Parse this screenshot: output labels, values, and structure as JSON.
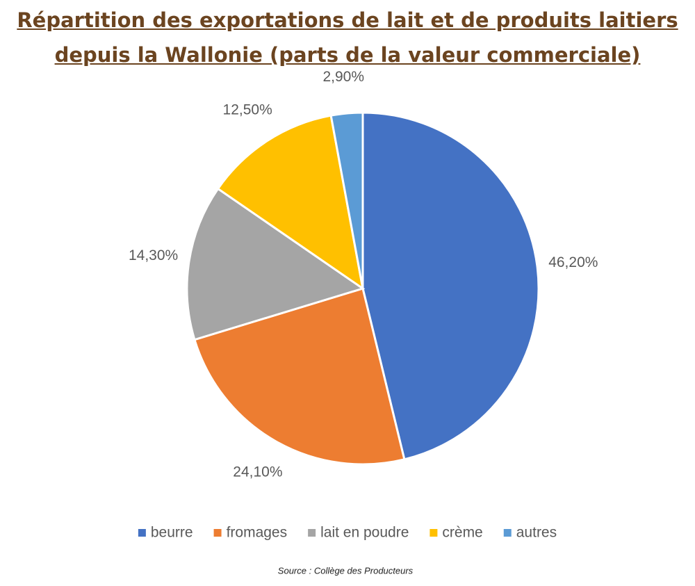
{
  "chart_data": {
    "type": "pie",
    "title": "Répartition des exportations de lait et de produits laitiers depuis la Wallonie (parts de la valeur commerciale)",
    "categories": [
      "beurre",
      "fromages",
      "lait en poudre",
      "crème",
      "autres"
    ],
    "values": [
      46.2,
      24.1,
      14.3,
      12.5,
      2.9
    ],
    "value_labels": [
      "46,20%",
      "24,10%",
      "14,30%",
      "12,50%",
      "2,90%"
    ],
    "colors": [
      "#4472c4",
      "#ed7d31",
      "#a5a5a5",
      "#ffc000",
      "#5b9bd5"
    ],
    "legend": "bottom",
    "source": "Source : Collège des Producteurs"
  }
}
